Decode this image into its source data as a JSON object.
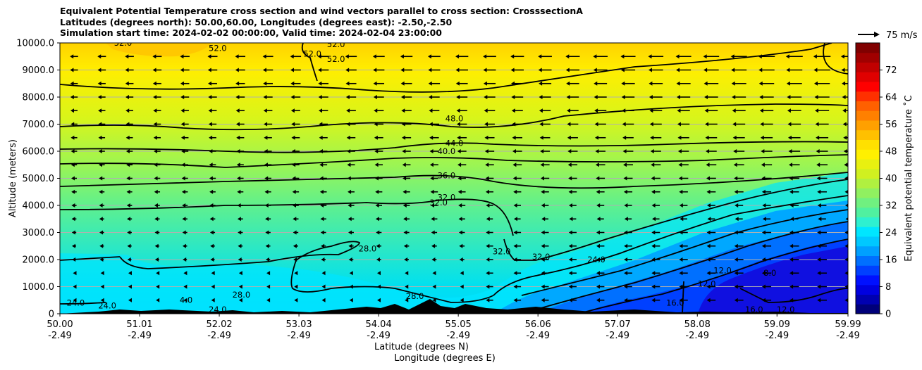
{
  "chart_data": {
    "type": "contourf",
    "title_lines": [
      "Equivalent Potential Temperature cross section and wind vectors parallel to cross section: CrosssectionA",
      "Latitudes (degrees north): 50.00,60.00, Longitudes (degrees east): -2.50,-2.50",
      "Simulation start time: 2024-02-02 00:00:00, Valid time: 2024-02-04 23:00:00"
    ],
    "ylabel": "Altitude (meters)",
    "xlabel_lines": [
      "Latitude (degrees N)",
      "Longitude (degrees E)"
    ],
    "ylim": [
      0,
      10000
    ],
    "y_ticks": [
      "0",
      "1000.0",
      "2000.0",
      "3000.0",
      "4000.0",
      "5000.0",
      "6000.0",
      "7000.0",
      "8000.0",
      "9000.0",
      "10000.0"
    ],
    "x_ticks": [
      {
        "lat": "50.00",
        "lon": "-2.49"
      },
      {
        "lat": "51.01",
        "lon": "-2.49"
      },
      {
        "lat": "52.02",
        "lon": "-2.49"
      },
      {
        "lat": "53.03",
        "lon": "-2.49"
      },
      {
        "lat": "54.04",
        "lon": "-2.49"
      },
      {
        "lat": "55.05",
        "lon": "-2.49"
      },
      {
        "lat": "56.06",
        "lon": "-2.49"
      },
      {
        "lat": "57.07",
        "lon": "-2.49"
      },
      {
        "lat": "58.08",
        "lon": "-2.49"
      },
      {
        "lat": "59.09",
        "lon": "-2.49"
      },
      {
        "lat": "59.99",
        "lon": "-2.49"
      }
    ],
    "colorbar": {
      "label": "Equivalent potential temperature $^\\circ$C",
      "range": [
        0,
        80
      ],
      "ticks": [
        "0",
        "8",
        "16",
        "24",
        "32",
        "40",
        "48",
        "56",
        "64",
        "72"
      ]
    },
    "quiver_key": {
      "label": "75 m/s"
    },
    "contour_labels": [
      {
        "text": "52.0",
        "lat": 50.8,
        "alt": 9900
      },
      {
        "text": "52.0",
        "lat": 52.0,
        "alt": 9700
      },
      {
        "text": "52.0",
        "lat": 53.2,
        "alt": 9500
      },
      {
        "text": "52.0",
        "lat": 53.5,
        "alt": 9850
      },
      {
        "text": "52.0",
        "lat": 53.5,
        "alt": 9300
      },
      {
        "text": "48.0",
        "lat": 55.0,
        "alt": 7100
      },
      {
        "text": "44.0",
        "lat": 55.0,
        "alt": 6200
      },
      {
        "text": "40.0",
        "lat": 54.9,
        "alt": 5900
      },
      {
        "text": "36.0",
        "lat": 54.9,
        "alt": 5000
      },
      {
        "text": "32.0",
        "lat": 54.9,
        "alt": 4200
      },
      {
        "text": "32.0",
        "lat": 54.8,
        "alt": 4000
      },
      {
        "text": "28.0",
        "lat": 53.9,
        "alt": 2300
      },
      {
        "text": "32.0",
        "lat": 55.6,
        "alt": 2200
      },
      {
        "text": "32.0",
        "lat": 56.1,
        "alt": 2000
      },
      {
        "text": "24.0",
        "lat": 56.8,
        "alt": 1900
      },
      {
        "text": "28.0",
        "lat": 52.3,
        "alt": 600
      },
      {
        "text": "28.0",
        "lat": 54.5,
        "alt": 550
      },
      {
        "text": "24.0",
        "lat": 50.6,
        "alt": 200
      },
      {
        "text": "24.0",
        "lat": 50.2,
        "alt": 300
      },
      {
        "text": "24.0",
        "lat": 52.0,
        "alt": 50
      },
      {
        "text": "4.0",
        "lat": 51.6,
        "alt": 400
      },
      {
        "text": "12.0",
        "lat": 58.2,
        "alt": 1000
      },
      {
        "text": "12.0",
        "lat": 58.4,
        "alt": 1500
      },
      {
        "text": "8.0",
        "lat": 59.0,
        "alt": 1400
      },
      {
        "text": "16.0",
        "lat": 58.8,
        "alt": 50
      },
      {
        "text": "12.0",
        "lat": 59.2,
        "alt": 50
      },
      {
        "text": "16.0",
        "lat": 57.8,
        "alt": 300
      }
    ]
  }
}
